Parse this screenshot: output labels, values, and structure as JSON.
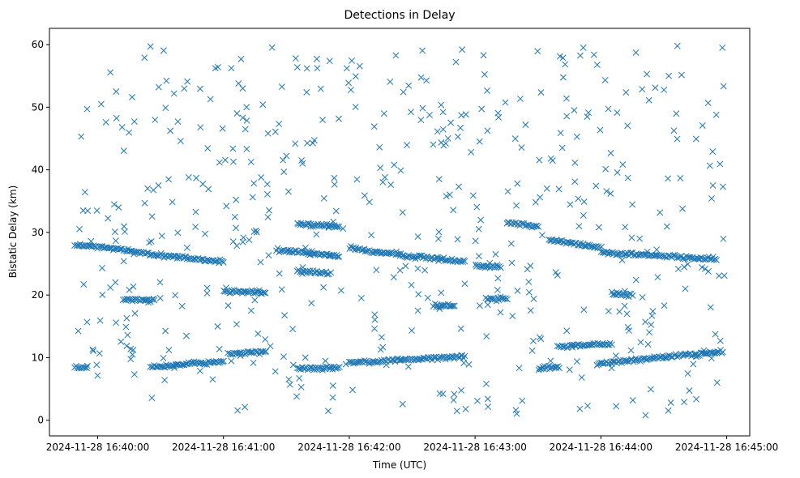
{
  "chart_data": {
    "type": "scatter",
    "title": "Detections in Delay",
    "xlabel": "Time (UTC)",
    "ylabel": "Bistatic Delay (km)",
    "marker": "x",
    "color": "#1f77b4",
    "grid": false,
    "xlim": [
      "2024-11-28 16:39:37",
      "2024-11-28 16:45:11"
    ],
    "ylim": [
      -2.5,
      62.6
    ],
    "xticks": [
      "2024-11-28 16:40:00",
      "2024-11-28 16:41:00",
      "2024-11-28 16:42:00",
      "2024-11-28 16:43:00",
      "2024-11-28 16:44:00",
      "2024-11-28 16:45:00"
    ],
    "yticks": [
      0,
      10,
      20,
      30,
      40,
      50,
      60
    ],
    "x_start": "2024-11-28 16:39:49",
    "x_end": "2024-11-28 16:44:59",
    "track_segments": [
      {
        "t0": "2024-11-28 16:39:49",
        "t1": "2024-11-28 16:40:17",
        "y0": 28.0,
        "y1": 27.1
      },
      {
        "t0": "2024-11-28 16:40:17",
        "t1": "2024-11-28 16:41:00",
        "y0": 26.8,
        "y1": 25.3
      },
      {
        "t0": "2024-11-28 16:41:25",
        "t1": "2024-11-28 16:41:55",
        "y0": 27.2,
        "y1": 26.2
      },
      {
        "t0": "2024-11-28 16:42:00",
        "t1": "2024-11-28 16:42:20",
        "y0": 27.5,
        "y1": 26.5
      },
      {
        "t0": "2024-11-28 16:42:22",
        "t1": "2024-11-28 16:42:55",
        "y0": 26.4,
        "y1": 25.4
      },
      {
        "t0": "2024-11-28 16:43:15",
        "t1": "2024-11-28 16:43:30",
        "y0": 31.6,
        "y1": 31.0
      },
      {
        "t0": "2024-11-28 16:43:35",
        "t1": "2024-11-28 16:44:00",
        "y0": 28.8,
        "y1": 27.6
      },
      {
        "t0": "2024-11-28 16:44:00",
        "t1": "2024-11-28 16:44:55",
        "y0": 26.8,
        "y1": 25.7
      },
      {
        "t0": "2024-11-28 16:39:49",
        "t1": "2024-11-28 16:39:55",
        "y0": 8.4,
        "y1": 8.4
      },
      {
        "t0": "2024-11-28 16:40:12",
        "t1": "2024-11-28 16:40:27",
        "y0": 19.3,
        "y1": 19.3
      },
      {
        "t0": "2024-11-28 16:40:25",
        "t1": "2024-11-28 16:41:00",
        "y0": 8.5,
        "y1": 9.4
      },
      {
        "t0": "2024-11-28 16:41:00",
        "t1": "2024-11-28 16:41:20",
        "y0": 20.5,
        "y1": 20.5
      },
      {
        "t0": "2024-11-28 16:41:02",
        "t1": "2024-11-28 16:41:20",
        "y0": 10.5,
        "y1": 11.0
      },
      {
        "t0": "2024-11-28 16:41:35",
        "t1": "2024-11-28 16:41:55",
        "y0": 8.2,
        "y1": 8.4
      },
      {
        "t0": "2024-11-28 16:41:35",
        "t1": "2024-11-28 16:41:55",
        "y0": 31.3,
        "y1": 31.0
      },
      {
        "t0": "2024-11-28 16:41:35",
        "t1": "2024-11-28 16:41:50",
        "y0": 23.8,
        "y1": 23.5
      },
      {
        "t0": "2024-11-28 16:42:00",
        "t1": "2024-11-28 16:42:55",
        "y0": 9.2,
        "y1": 10.2
      },
      {
        "t0": "2024-11-28 16:42:40",
        "t1": "2024-11-28 16:42:50",
        "y0": 18.3,
        "y1": 18.3
      },
      {
        "t0": "2024-11-28 16:43:00",
        "t1": "2024-11-28 16:43:12",
        "y0": 24.7,
        "y1": 24.5
      },
      {
        "t0": "2024-11-28 16:43:05",
        "t1": "2024-11-28 16:43:15",
        "y0": 19.4,
        "y1": 19.4
      },
      {
        "t0": "2024-11-28 16:43:30",
        "t1": "2024-11-28 16:43:40",
        "y0": 8.3,
        "y1": 8.5
      },
      {
        "t0": "2024-11-28 16:43:40",
        "t1": "2024-11-28 16:44:05",
        "y0": 11.8,
        "y1": 12.2
      },
      {
        "t0": "2024-11-28 16:43:58",
        "t1": "2024-11-28 16:44:34",
        "y0": 9.0,
        "y1": 10.2
      },
      {
        "t0": "2024-11-28 16:44:35",
        "t1": "2024-11-28 16:44:58",
        "y0": 10.3,
        "y1": 10.9
      },
      {
        "t0": "2024-11-28 16:44:05",
        "t1": "2024-11-28 16:44:15",
        "y0": 20.2,
        "y1": 20.0
      }
    ],
    "noise_points": 520,
    "noise_ymin": 0.6,
    "noise_ymax": 59.8
  }
}
